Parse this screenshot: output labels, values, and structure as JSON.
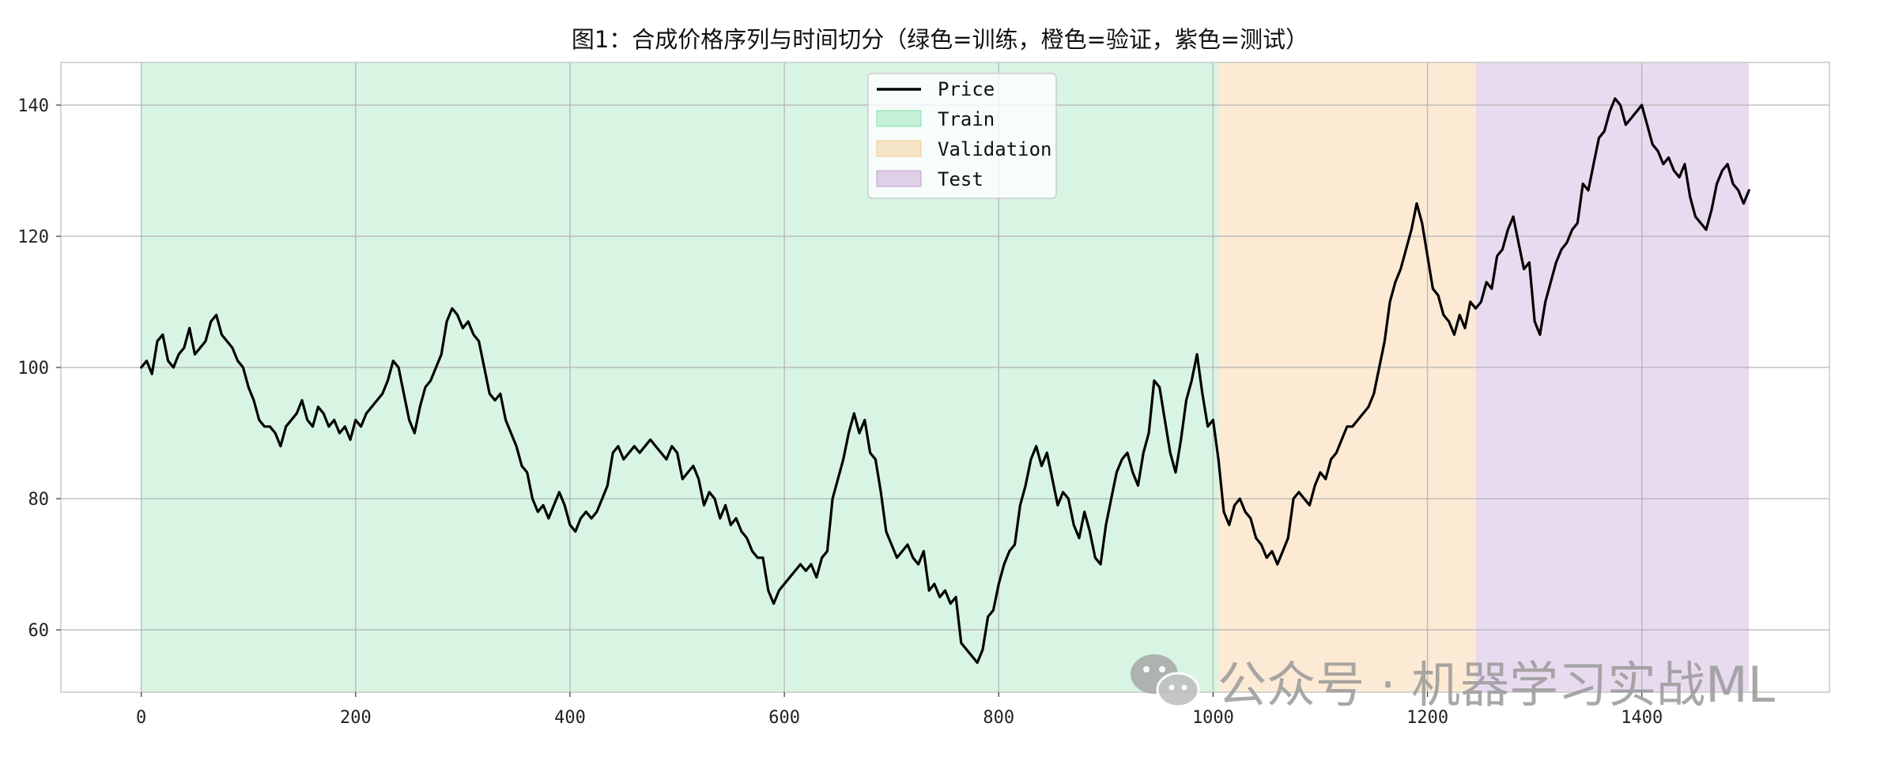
{
  "chart_data": {
    "type": "line",
    "title": "图1：合成价格序列与时间切分（绿色=训练，橙色=验证，紫色=测试）",
    "xlabel": "",
    "ylabel": "",
    "xlim": [
      -75,
      1575
    ],
    "ylim": [
      50.5,
      146.5
    ],
    "x_ticks": [
      0,
      200,
      400,
      600,
      800,
      1000,
      1200,
      1400
    ],
    "y_ticks": [
      60,
      80,
      100,
      120,
      140
    ],
    "grid": true,
    "legend": {
      "placement": "top-center"
    },
    "series": [
      {
        "name": "Price",
        "color": "#000000",
        "x": [
          0,
          5,
          10,
          15,
          20,
          25,
          30,
          35,
          40,
          45,
          50,
          55,
          60,
          65,
          70,
          75,
          80,
          85,
          90,
          95,
          100,
          105,
          110,
          115,
          120,
          125,
          130,
          135,
          140,
          145,
          150,
          155,
          160,
          165,
          170,
          175,
          180,
          185,
          190,
          195,
          200,
          205,
          210,
          215,
          220,
          225,
          230,
          235,
          240,
          245,
          250,
          255,
          260,
          265,
          270,
          275,
          280,
          285,
          290,
          295,
          300,
          305,
          310,
          315,
          320,
          325,
          330,
          335,
          340,
          345,
          350,
          355,
          360,
          365,
          370,
          375,
          380,
          385,
          390,
          395,
          400,
          405,
          410,
          415,
          420,
          425,
          430,
          435,
          440,
          445,
          450,
          455,
          460,
          465,
          470,
          475,
          480,
          485,
          490,
          495,
          500,
          505,
          510,
          515,
          520,
          525,
          530,
          535,
          540,
          545,
          550,
          555,
          560,
          565,
          570,
          575,
          580,
          585,
          590,
          595,
          600,
          605,
          610,
          615,
          620,
          625,
          630,
          635,
          640,
          645,
          650,
          655,
          660,
          665,
          670,
          675,
          680,
          685,
          690,
          695,
          700,
          705,
          710,
          715,
          720,
          725,
          730,
          735,
          740,
          745,
          750,
          755,
          760,
          765,
          770,
          775,
          780,
          785,
          790,
          795,
          800,
          805,
          810,
          815,
          820,
          825,
          830,
          835,
          840,
          845,
          850,
          855,
          860,
          865,
          870,
          875,
          880,
          885,
          890,
          895,
          900,
          905,
          910,
          915,
          920,
          925,
          930,
          935,
          940,
          945,
          950,
          955,
          960,
          965,
          970,
          975,
          980,
          985,
          990,
          995,
          1000,
          1005,
          1010,
          1015,
          1020,
          1025,
          1030,
          1035,
          1040,
          1045,
          1050,
          1055,
          1060,
          1065,
          1070,
          1075,
          1080,
          1085,
          1090,
          1095,
          1100,
          1105,
          1110,
          1115,
          1120,
          1125,
          1130,
          1135,
          1140,
          1145,
          1150,
          1155,
          1160,
          1165,
          1170,
          1175,
          1180,
          1185,
          1190,
          1195,
          1200,
          1205,
          1210,
          1215,
          1220,
          1225,
          1230,
          1235,
          1240,
          1245,
          1250,
          1255,
          1260,
          1265,
          1270,
          1275,
          1280,
          1285,
          1290,
          1295,
          1300,
          1305,
          1310,
          1315,
          1320,
          1325,
          1330,
          1335,
          1340,
          1345,
          1350,
          1355,
          1360,
          1365,
          1370,
          1375,
          1380,
          1385,
          1390,
          1395,
          1400,
          1405,
          1410,
          1415,
          1420,
          1425,
          1430,
          1435,
          1440,
          1445,
          1450,
          1455,
          1460,
          1465,
          1470,
          1475,
          1480,
          1485,
          1490,
          1495,
          1500
        ],
        "values": [
          100,
          101,
          99,
          104,
          105,
          101,
          100,
          102,
          103,
          106,
          102,
          103,
          104,
          107,
          108,
          105,
          104,
          103,
          101,
          100,
          97,
          95,
          92,
          91,
          91,
          90,
          88,
          91,
          92,
          93,
          95,
          92,
          91,
          94,
          93,
          91,
          92,
          90,
          91,
          89,
          92,
          91,
          93,
          94,
          95,
          96,
          98,
          101,
          100,
          96,
          92,
          90,
          94,
          97,
          98,
          100,
          102,
          107,
          109,
          108,
          106,
          107,
          105,
          104,
          100,
          96,
          95,
          96,
          92,
          90,
          88,
          85,
          84,
          80,
          78,
          79,
          77,
          79,
          81,
          79,
          76,
          75,
          77,
          78,
          77,
          78,
          80,
          82,
          87,
          88,
          86,
          87,
          88,
          87,
          88,
          89,
          88,
          87,
          86,
          88,
          87,
          83,
          84,
          85,
          83,
          79,
          81,
          80,
          77,
          79,
          76,
          77,
          75,
          74,
          72,
          71,
          71,
          66,
          64,
          66,
          67,
          68,
          69,
          70,
          69,
          70,
          68,
          71,
          72,
          80,
          83,
          86,
          90,
          93,
          90,
          92,
          87,
          86,
          81,
          75,
          73,
          71,
          72,
          73,
          71,
          70,
          72,
          66,
          67,
          65,
          66,
          64,
          65,
          58,
          57,
          56,
          55,
          57,
          62,
          63,
          67,
          70,
          72,
          73,
          79,
          82,
          86,
          88,
          85,
          87,
          83,
          79,
          81,
          80,
          76,
          74,
          78,
          75,
          71,
          70,
          76,
          80,
          84,
          86,
          87,
          84,
          82,
          87,
          90,
          98,
          97,
          92,
          87,
          84,
          89,
          95,
          98,
          102,
          96,
          91,
          92,
          86,
          78,
          76,
          79,
          80,
          78,
          77,
          74,
          73,
          71,
          72,
          70,
          72,
          74,
          80,
          81,
          80,
          79,
          82,
          84,
          83,
          86,
          87,
          89,
          91,
          91,
          92,
          93,
          94,
          96,
          100,
          104,
          110,
          113,
          115,
          118,
          121,
          125,
          122,
          117,
          112,
          111,
          108,
          107,
          105,
          108,
          106,
          110,
          109,
          110,
          113,
          112,
          117,
          118,
          121,
          123,
          119,
          115,
          116,
          107,
          105,
          110,
          113,
          116,
          118,
          119,
          121,
          122,
          128,
          127,
          131,
          135,
          136,
          139,
          141,
          140,
          137,
          138,
          139,
          140,
          137,
          134,
          133,
          131,
          132,
          130,
          129,
          131,
          126,
          123,
          122,
          121,
          124,
          128,
          130,
          131,
          128,
          127,
          125,
          127
        ]
      }
    ],
    "regions": [
      {
        "name": "Train",
        "start": 0,
        "end": 1005,
        "color": "#2ecc71",
        "alpha": 0.19
      },
      {
        "name": "Validation",
        "start": 1005,
        "end": 1245,
        "color": "#f0a13a",
        "alpha": 0.22
      },
      {
        "name": "Test",
        "start": 1245,
        "end": 1500,
        "color": "#9b59b6",
        "alpha": 0.22
      }
    ]
  },
  "watermark": {
    "text": "公众号 · 机器学习实战ML",
    "icon": "wechat-icon"
  }
}
